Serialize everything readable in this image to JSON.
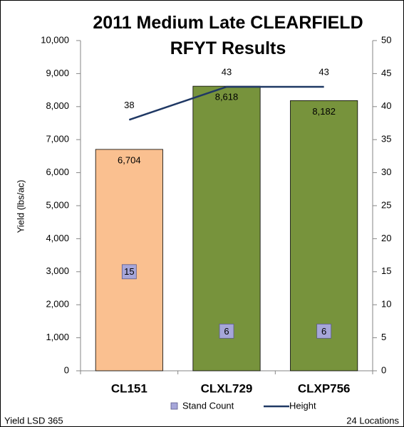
{
  "chart_data": {
    "type": "bar",
    "title": "2011 Medium Late CLEARFIELD RFYT Results",
    "ylabel": "Yield (lbs/ac)",
    "categories": [
      "CL151",
      "CLXL729",
      "CLXP756"
    ],
    "series": [
      {
        "name": "Yield",
        "type": "bar",
        "colors": [
          "#FAC090",
          "#77933C",
          "#77933C"
        ],
        "values": [
          6704,
          8618,
          8182
        ],
        "value_labels": [
          "6,704",
          "8,618",
          "8,182"
        ]
      },
      {
        "name": "Stand Count",
        "type": "scatter",
        "axis": "y2",
        "color": "#A6A6D9",
        "values": [
          15,
          6,
          6
        ]
      },
      {
        "name": "Height",
        "type": "line",
        "axis": "y2",
        "color": "#1F3864",
        "values": [
          38,
          43,
          43
        ]
      }
    ],
    "ylim": [
      0,
      10000
    ],
    "yticks": [
      {
        "value": 0,
        "label": "0"
      },
      {
        "value": 1000,
        "label": "1,000"
      },
      {
        "value": 2000,
        "label": "2,000"
      },
      {
        "value": 3000,
        "label": "3,000"
      },
      {
        "value": 4000,
        "label": "4,000"
      },
      {
        "value": 5000,
        "label": "5,000"
      },
      {
        "value": 6000,
        "label": "6,000"
      },
      {
        "value": 7000,
        "label": "7,000"
      },
      {
        "value": 8000,
        "label": "8,000"
      },
      {
        "value": 9000,
        "label": "9,000"
      },
      {
        "value": 10000,
        "label": "10,000"
      }
    ],
    "y2lim": [
      0,
      50
    ],
    "y2ticks": [
      0,
      5,
      10,
      15,
      20,
      25,
      30,
      35,
      40,
      45,
      50
    ],
    "grid": false,
    "footnote_left": "Yield LSD 365",
    "footnote_right": "24 Locations"
  }
}
